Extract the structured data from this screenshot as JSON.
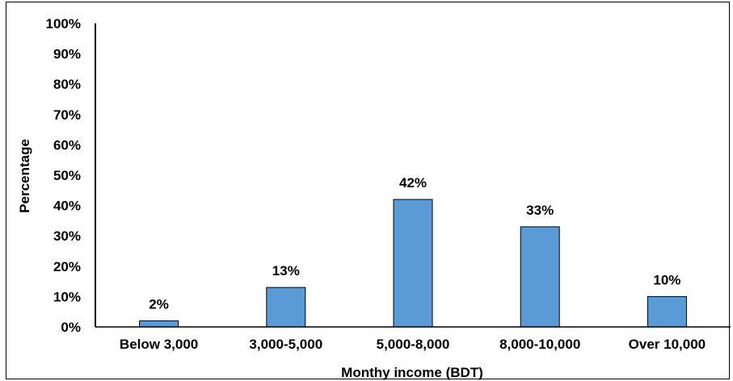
{
  "chart_data": {
    "type": "bar",
    "title": "",
    "xlabel": "Monthy income (BDT)",
    "ylabel": "Percentage",
    "categories": [
      "Below 3,000",
      "3,000-5,000",
      "5,000-8,000",
      "8,000-10,000",
      "Over 10,000"
    ],
    "values": [
      2,
      13,
      42,
      33,
      10
    ],
    "data_labels": [
      "2%",
      "13%",
      "42%",
      "33%",
      "10%"
    ],
    "ylim": [
      0,
      100
    ],
    "yticks": [
      0,
      10,
      20,
      30,
      40,
      50,
      60,
      70,
      80,
      90,
      100
    ],
    "ytick_labels": [
      "0%",
      "10%",
      "20%",
      "30%",
      "40%",
      "50%",
      "60%",
      "70%",
      "80%",
      "90%",
      "100%"
    ],
    "grid": false,
    "legend": "none",
    "bar_color": "#5B9BD5",
    "bar_edge_color": "#000000"
  }
}
